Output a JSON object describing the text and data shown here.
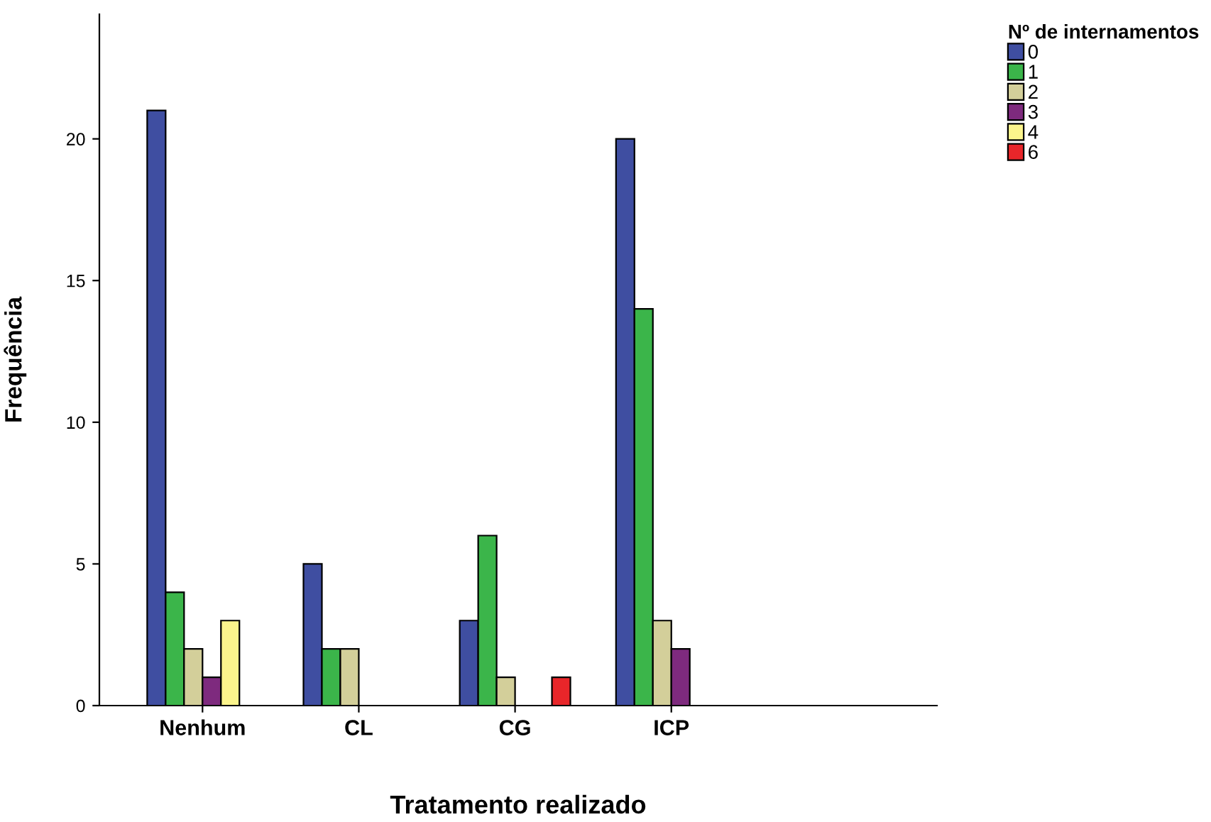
{
  "chart_data": {
    "type": "bar",
    "xlabel": "Tratamento realizado",
    "ylabel": "Frequência",
    "legend_title": "Nº de internamentos",
    "categories": [
      "Nenhum",
      "CL",
      "CG",
      "ICP"
    ],
    "series": [
      {
        "name": "0",
        "color": "#3f4ea1",
        "values": [
          21,
          5,
          3,
          20
        ]
      },
      {
        "name": "1",
        "color": "#3bb54a",
        "values": [
          4,
          2,
          6,
          14
        ]
      },
      {
        "name": "2",
        "color": "#d3cf9a",
        "values": [
          2,
          2,
          1,
          3
        ]
      },
      {
        "name": "3",
        "color": "#7e2a7e",
        "values": [
          1,
          0,
          null,
          2
        ]
      },
      {
        "name": "4",
        "color": "#fbf48c",
        "values": [
          3,
          0,
          null,
          0
        ]
      },
      {
        "name": "6",
        "color": "#e8262a",
        "values": [
          0,
          0,
          1,
          0
        ]
      }
    ],
    "ylim": [
      0,
      24.4
    ],
    "yticks": [
      0,
      5,
      10,
      15,
      20
    ],
    "grid": false,
    "legend": "top right"
  }
}
